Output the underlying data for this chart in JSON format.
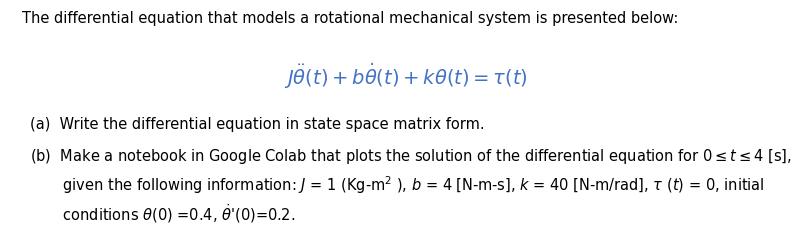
{
  "background_color": "#ffffff",
  "intro_text": "The differential equation that models a rotational mechanical system is presented below:",
  "equation_latex": "$J\\ddot{\\theta}(t) + b\\dot{\\theta}(t) + k\\theta(t) = \\tau(t)$",
  "item_a": "(a)  Write the differential equation in state space matrix form.",
  "item_b_line1": "(b)  Make a notebook in Google Colab that plots the solution of the differential equation for $0 \\leq t \\leq 4$ [s],",
  "item_b_line2": "       given the following information: $J$ = 1 (Kg-m$^2$ ), $b$ = 4 [N-m-s], $k$ = 40 [N-m/rad], $\\tau$ ($t$) = 0, initial",
  "item_b_line3": "       conditions $\\theta$(0) =0.4, $\\dot{\\theta}$'(0)=0.2.",
  "intro_fontsize": 10.5,
  "eq_fontsize": 14,
  "body_fontsize": 10.5,
  "eq_color": "#4472C4",
  "text_color": "#000000",
  "fig_width": 8.12,
  "fig_height": 2.29,
  "dpi": 100
}
